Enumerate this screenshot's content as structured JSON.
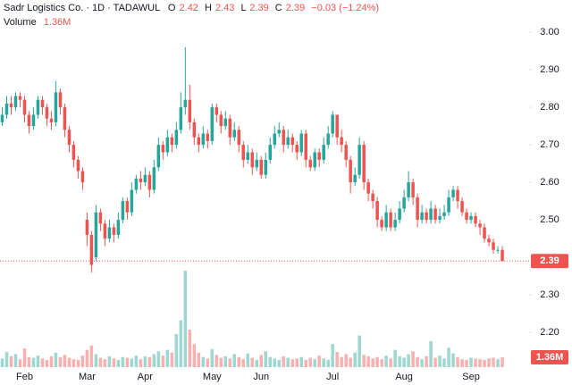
{
  "chart_data": {
    "type": "candlestick",
    "title": "Sadr Logistics Co. · 1D · TADAWUL",
    "ohlc_labels": [
      "O",
      "H",
      "L",
      "C"
    ],
    "ohlc_values": [
      2.42,
      2.43,
      2.39,
      2.39
    ],
    "change": {
      "value": -0.03,
      "label": "−0.03 (−1.24%)"
    },
    "volume_label": "Volume",
    "volume_last": {
      "value": 1.36,
      "label": "1.36M"
    },
    "last_price": 2.39,
    "up_color": "#26a69a",
    "down_color": "#ef5350",
    "grid": false,
    "ylim": [
      2.105,
      3.086
    ],
    "yticks": [
      {
        "value": 2.2,
        "label": "2.20"
      },
      {
        "value": 2.3,
        "label": "2.30"
      },
      {
        "value": 2.5,
        "label": "2.50"
      },
      {
        "value": 2.6,
        "label": "2.60"
      },
      {
        "value": 2.7,
        "label": "2.70"
      },
      {
        "value": 2.8,
        "label": "2.80"
      },
      {
        "value": 2.9,
        "label": "2.90"
      },
      {
        "value": 3,
        "label": "3.00"
      }
    ],
    "xlim": [
      -0.5,
      118
    ],
    "xticks": [
      {
        "value": 5,
        "label": "Feb"
      },
      {
        "value": 19,
        "label": "Mar"
      },
      {
        "value": 32,
        "label": "Apr"
      },
      {
        "value": 47,
        "label": "May"
      },
      {
        "value": 58,
        "label": "Jun"
      },
      {
        "value": 74,
        "label": "Jul"
      },
      {
        "value": 90,
        "label": "Aug"
      },
      {
        "value": 105,
        "label": "Sep"
      }
    ],
    "candles": {
      "open": [
        2.76,
        2.78,
        2.81,
        2.8,
        2.83,
        2.82,
        2.78,
        2.75,
        2.78,
        2.82,
        2.8,
        2.77,
        2.76,
        2.84,
        2.8,
        2.74,
        2.7,
        2.66,
        2.63,
        2.5,
        2.46,
        2.4,
        2.52,
        2.49,
        2.45,
        2.48,
        2.46,
        2.5,
        2.55,
        2.52,
        2.58,
        2.61,
        2.6,
        2.62,
        2.58,
        2.64,
        2.7,
        2.68,
        2.72,
        2.7,
        2.74,
        2.8,
        2.82,
        2.76,
        2.72,
        2.7,
        2.73,
        2.71,
        2.8,
        2.78,
        2.75,
        2.77,
        2.72,
        2.74,
        2.7,
        2.66,
        2.68,
        2.64,
        2.66,
        2.62,
        2.66,
        2.7,
        2.73,
        2.74,
        2.7,
        2.72,
        2.7,
        2.68,
        2.73,
        2.66,
        2.64,
        2.68,
        2.66,
        2.7,
        2.73,
        2.78,
        2.72,
        2.7,
        2.66,
        2.6,
        2.62,
        2.7,
        2.6,
        2.57,
        2.55,
        2.5,
        2.48,
        2.52,
        2.48,
        2.5,
        2.53,
        2.56,
        2.6,
        2.56,
        2.5,
        2.52,
        2.5,
        2.53,
        2.5,
        2.51,
        2.52,
        2.56,
        2.58,
        2.55,
        2.52,
        2.5,
        2.51,
        2.49,
        2.48,
        2.45,
        2.44,
        2.42,
        2.42
      ],
      "high": [
        2.8,
        2.83,
        2.83,
        2.84,
        2.84,
        2.83,
        2.79,
        2.8,
        2.83,
        2.83,
        2.81,
        2.79,
        2.87,
        2.85,
        2.81,
        2.75,
        2.71,
        2.67,
        2.64,
        2.52,
        2.47,
        2.54,
        2.53,
        2.5,
        2.5,
        2.49,
        2.52,
        2.56,
        2.56,
        2.6,
        2.62,
        2.63,
        2.64,
        2.63,
        2.66,
        2.72,
        2.71,
        2.74,
        2.73,
        2.76,
        2.84,
        2.96,
        2.86,
        2.77,
        2.73,
        2.75,
        2.74,
        2.81,
        2.81,
        2.79,
        2.79,
        2.78,
        2.76,
        2.75,
        2.71,
        2.7,
        2.69,
        2.68,
        2.67,
        2.68,
        2.72,
        2.75,
        2.76,
        2.75,
        2.74,
        2.73,
        2.71,
        2.74,
        2.74,
        2.67,
        2.69,
        2.69,
        2.72,
        2.75,
        2.79,
        2.78,
        2.74,
        2.71,
        2.67,
        2.64,
        2.72,
        2.71,
        2.61,
        2.58,
        2.56,
        2.51,
        2.54,
        2.53,
        2.52,
        2.55,
        2.58,
        2.63,
        2.61,
        2.57,
        2.54,
        2.53,
        2.55,
        2.54,
        2.53,
        2.54,
        2.58,
        2.59,
        2.59,
        2.56,
        2.53,
        2.52,
        2.52,
        2.5,
        2.49,
        2.46,
        2.45,
        2.43,
        2.43
      ],
      "low": [
        2.75,
        2.77,
        2.78,
        2.79,
        2.8,
        2.76,
        2.73,
        2.74,
        2.77,
        2.78,
        2.75,
        2.74,
        2.75,
        2.78,
        2.72,
        2.68,
        2.64,
        2.61,
        2.58,
        2.43,
        2.36,
        2.39,
        2.47,
        2.43,
        2.44,
        2.44,
        2.45,
        2.49,
        2.5,
        2.51,
        2.57,
        2.58,
        2.59,
        2.56,
        2.57,
        2.63,
        2.66,
        2.67,
        2.68,
        2.69,
        2.73,
        2.78,
        2.74,
        2.7,
        2.68,
        2.69,
        2.69,
        2.7,
        2.76,
        2.73,
        2.74,
        2.7,
        2.71,
        2.68,
        2.64,
        2.65,
        2.62,
        2.63,
        2.61,
        2.61,
        2.65,
        2.69,
        2.72,
        2.68,
        2.69,
        2.68,
        2.66,
        2.67,
        2.64,
        2.63,
        2.63,
        2.64,
        2.65,
        2.69,
        2.72,
        2.7,
        2.68,
        2.64,
        2.57,
        2.59,
        2.61,
        2.58,
        2.55,
        2.53,
        2.48,
        2.47,
        2.47,
        2.47,
        2.47,
        2.49,
        2.52,
        2.55,
        2.54,
        2.48,
        2.49,
        2.49,
        2.49,
        2.49,
        2.49,
        2.5,
        2.51,
        2.55,
        2.53,
        2.51,
        2.49,
        2.49,
        2.48,
        2.46,
        2.44,
        2.43,
        2.41,
        2.41,
        2.39
      ],
      "close": [
        2.78,
        2.81,
        2.8,
        2.83,
        2.82,
        2.78,
        2.75,
        2.78,
        2.82,
        2.8,
        2.77,
        2.76,
        2.84,
        2.8,
        2.74,
        2.7,
        2.66,
        2.63,
        2.6,
        2.46,
        2.38,
        2.52,
        2.49,
        2.45,
        2.48,
        2.46,
        2.5,
        2.55,
        2.52,
        2.58,
        2.61,
        2.6,
        2.62,
        2.58,
        2.64,
        2.7,
        2.68,
        2.72,
        2.7,
        2.74,
        2.8,
        2.82,
        2.76,
        2.72,
        2.7,
        2.73,
        2.71,
        2.8,
        2.78,
        2.75,
        2.77,
        2.72,
        2.74,
        2.7,
        2.66,
        2.68,
        2.64,
        2.66,
        2.62,
        2.66,
        2.7,
        2.73,
        2.74,
        2.7,
        2.72,
        2.7,
        2.68,
        2.73,
        2.66,
        2.64,
        2.68,
        2.66,
        2.7,
        2.73,
        2.78,
        2.72,
        2.7,
        2.66,
        2.6,
        2.62,
        2.7,
        2.6,
        2.57,
        2.55,
        2.5,
        2.48,
        2.52,
        2.48,
        2.5,
        2.53,
        2.56,
        2.6,
        2.56,
        2.5,
        2.52,
        2.5,
        2.53,
        2.5,
        2.51,
        2.52,
        2.56,
        2.58,
        2.55,
        2.52,
        2.5,
        2.51,
        2.49,
        2.48,
        2.45,
        2.44,
        2.42,
        2.42,
        2.39
      ],
      "volume": [
        1.2,
        2.1,
        1.5,
        1.8,
        1.1,
        2.6,
        1.4,
        1.3,
        1.6,
        1.2,
        1.0,
        1.5,
        2.0,
        1.4,
        1.7,
        1.3,
        1.1,
        1.0,
        1.6,
        2.4,
        3.0,
        1.8,
        1.3,
        1.1,
        1.5,
        1.2,
        1.0,
        1.4,
        1.3,
        1.2,
        1.6,
        1.1,
        1.5,
        1.4,
        1.8,
        2.2,
        1.6,
        2.4,
        2.0,
        4.6,
        6.5,
        13.4,
        5.2,
        3.2,
        2.0,
        1.4,
        1.2,
        2.5,
        1.7,
        1.3,
        1.5,
        1.2,
        1.8,
        1.4,
        1.1,
        1.9,
        1.3,
        1.0,
        1.7,
        2.2,
        1.4,
        1.2,
        1.0,
        1.5,
        1.3,
        1.1,
        1.2,
        1.4,
        1.0,
        1.3,
        1.1,
        1.6,
        1.2,
        1.0,
        3.2,
        2.1,
        1.4,
        1.8,
        1.3,
        2.0,
        4.4,
        1.7,
        1.5,
        1.2,
        1.4,
        1.1,
        1.6,
        1.2,
        2.4,
        1.5,
        1.3,
        1.8,
        2.2,
        1.4,
        1.1,
        1.5,
        3.6,
        1.3,
        1.6,
        1.2,
        2.7,
        1.9,
        1.4,
        1.1,
        1.0,
        1.3,
        1.2,
        1.1,
        1.0,
        1.2,
        1.3,
        1.1,
        1.36
      ]
    }
  }
}
